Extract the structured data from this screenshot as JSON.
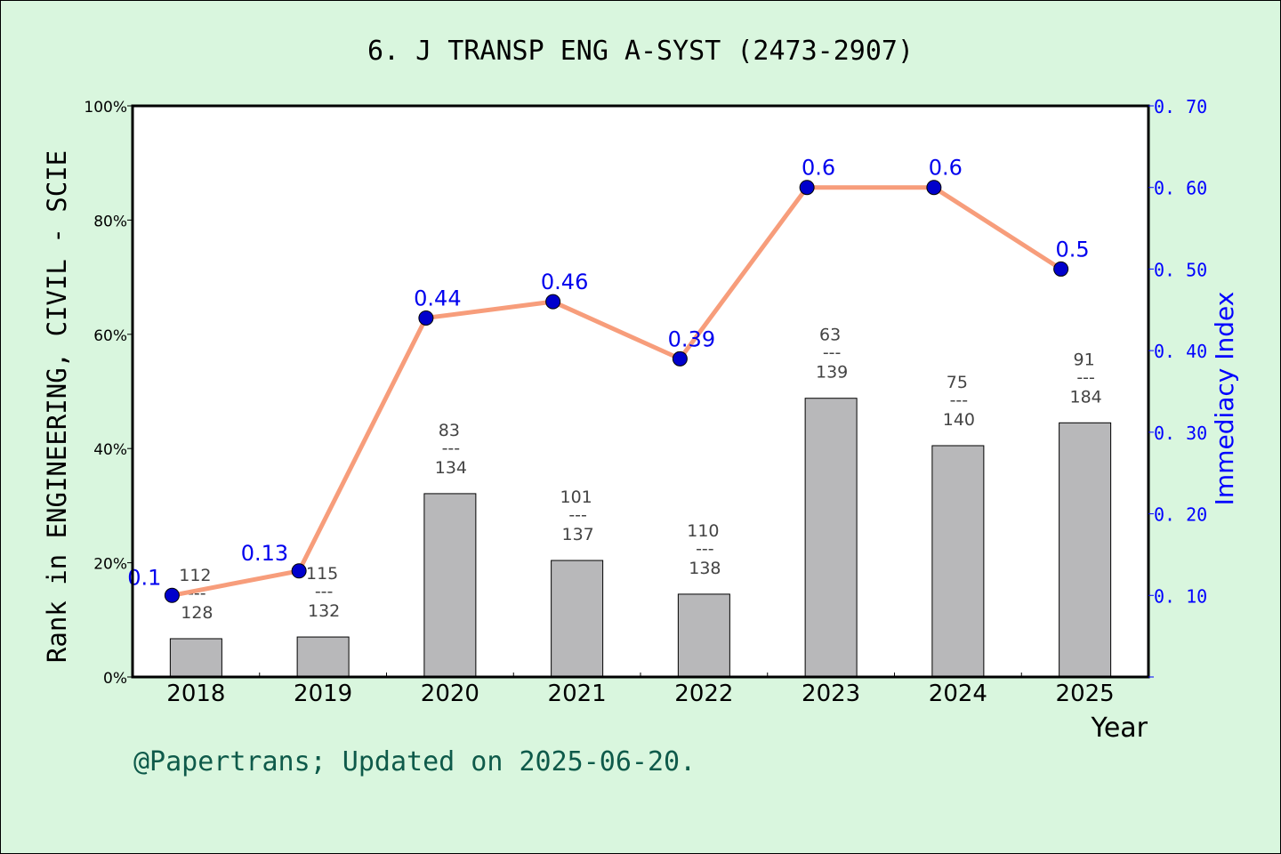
{
  "chart_data": {
    "type": "bar+line",
    "title": "6. J TRANSP ENG A-SYST (2473-2907)",
    "xlabel": "Year",
    "ylabel": "Rank in ENGINEERING, CIVIL - SCIE",
    "y2label": "Immediacy Index",
    "categories": [
      "2018",
      "2019",
      "2020",
      "2021",
      "2022",
      "2023",
      "2024",
      "2025"
    ],
    "ylim": [
      0,
      100
    ],
    "yticks": [
      "0%",
      "20%",
      "40%",
      "60%",
      "80%",
      "100%"
    ],
    "y2lim": [
      0,
      0.7
    ],
    "y2ticks": [
      "0.10",
      "0.20",
      "0.30",
      "0.40",
      "0.50",
      "0.60",
      "0.70"
    ],
    "bars": {
      "values_percent": [
        6.7,
        7.0,
        32.1,
        20.4,
        14.5,
        48.8,
        40.5,
        44.5
      ],
      "rank": [
        "112",
        "115",
        "83",
        "101",
        "110",
        "63",
        "75",
        "91"
      ],
      "total": [
        "128",
        "132",
        "134",
        "137",
        "138",
        "139",
        "140",
        "184"
      ],
      "separator": "---",
      "color": "#b8b8ba"
    },
    "line": {
      "values": [
        0.1,
        0.13,
        0.44,
        0.46,
        0.39,
        0.6,
        0.6,
        0.5
      ],
      "labels": [
        "0.1",
        "0.13",
        "0.44",
        "0.46",
        "0.39",
        "0.6",
        "0.6",
        "0.5"
      ],
      "color": "#f79d7b",
      "marker_color": "#0000cc"
    },
    "grid": false
  },
  "footer": "@Papertrans; Updated on 2025-06-20."
}
